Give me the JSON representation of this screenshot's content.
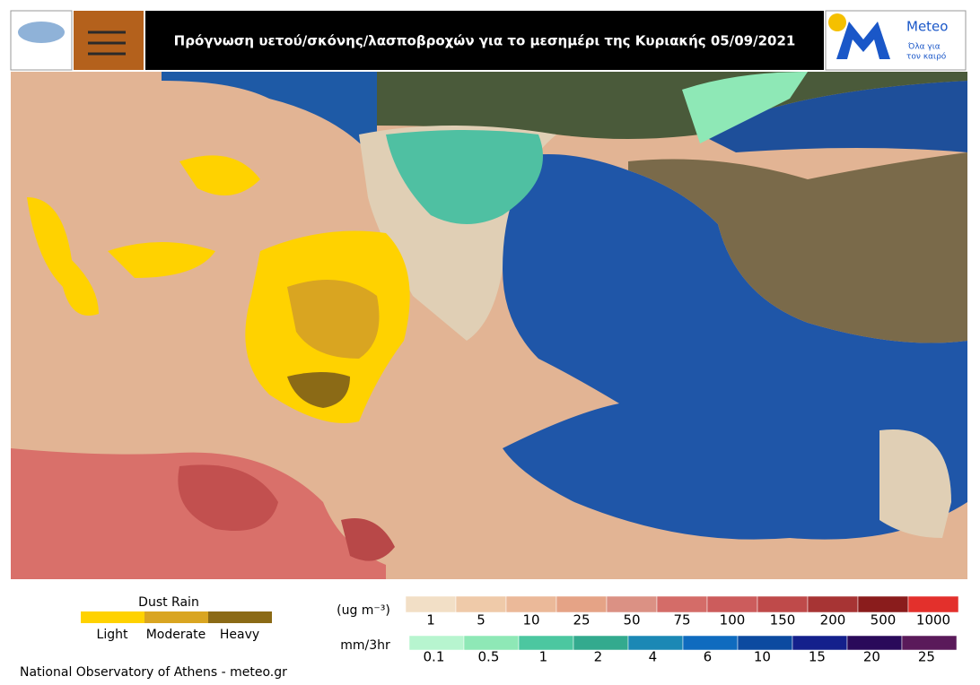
{
  "header": {
    "title": "Πρόγνωση υετού/σκόνης/λασποβροχών  για το μεσημέρι της Κυριακής 05/09/2021"
  },
  "logo": {
    "name": "Meteo",
    "tagline": [
      "Όλα για",
      "τον καιρό"
    ]
  },
  "dust_rain_legend": {
    "title": "Dust Rain",
    "labels": [
      "Light",
      "Moderate",
      "Heavy"
    ],
    "colors": [
      "#ffd200",
      "#d9a521",
      "#8b6a16"
    ]
  },
  "concentration_scale": {
    "unit": "(ug m⁻³)",
    "labels": [
      "1",
      "5",
      "10",
      "25",
      "50",
      "75",
      "100",
      "150",
      "200",
      "500",
      "1000"
    ],
    "colors": [
      "#f2dfc6",
      "#efcaa9",
      "#ebb999",
      "#e5a386",
      "#db9184",
      "#d46c68",
      "#cc5c5c",
      "#bf4a4a",
      "#a73434",
      "#8a1c1c",
      "#e3302c"
    ]
  },
  "precipitation_scale": {
    "unit": "mm/3hr",
    "labels": [
      "0.1",
      "0.5",
      "1",
      "2",
      "4",
      "6",
      "10",
      "15",
      "20",
      "25"
    ],
    "colors": [
      "#b7f5cf",
      "#8ee8b6",
      "#4cc7a0",
      "#33aa8e",
      "#1b88b5",
      "#0f6bbf",
      "#0c4aa0",
      "#14208c",
      "#2a0a5a",
      "#5a1a5a"
    ]
  },
  "footer": {
    "credit": "National Observatory of Athens - meteo.gr"
  }
}
